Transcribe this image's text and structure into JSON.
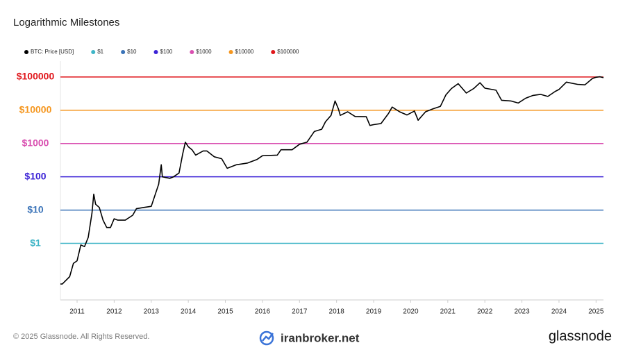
{
  "chart_data": {
    "type": "line",
    "title": "Logarithmic Milestones",
    "log_y": true,
    "xlim": [
      2010.55,
      2025.2
    ],
    "xticks": [
      2011,
      2012,
      2013,
      2014,
      2015,
      2016,
      2017,
      2018,
      2019,
      2020,
      2021,
      2022,
      2023,
      2024,
      2025
    ],
    "ylim": [
      0.02,
      300000
    ],
    "yticks": [
      {
        "value": 100000,
        "label": "$100000"
      },
      {
        "value": 10000,
        "label": "$10000"
      },
      {
        "value": 1000,
        "label": "$1000"
      },
      {
        "value": 100,
        "label": "$100"
      },
      {
        "value": 10,
        "label": "$10"
      },
      {
        "value": 1,
        "label": "$1"
      }
    ],
    "x": [
      2010.55,
      2010.6,
      2010.8,
      2010.9,
      2011.0,
      2011.1,
      2011.2,
      2011.3,
      2011.4,
      2011.45,
      2011.5,
      2011.6,
      2011.7,
      2011.8,
      2011.9,
      2012.0,
      2012.1,
      2012.3,
      2012.5,
      2012.6,
      2012.8,
      2013.0,
      2013.2,
      2013.27,
      2013.3,
      2013.5,
      2013.6,
      2013.75,
      2013.85,
      2013.92,
      2014.0,
      2014.1,
      2014.2,
      2014.4,
      2014.5,
      2014.7,
      2014.9,
      2015.05,
      2015.3,
      2015.6,
      2015.85,
      2016.0,
      2016.4,
      2016.5,
      2016.8,
      2017.0,
      2017.2,
      2017.4,
      2017.6,
      2017.7,
      2017.85,
      2017.96,
      2018.05,
      2018.1,
      2018.3,
      2018.5,
      2018.8,
      2018.9,
      2019.0,
      2019.2,
      2019.4,
      2019.5,
      2019.7,
      2019.9,
      2020.1,
      2020.2,
      2020.4,
      2020.6,
      2020.8,
      2020.95,
      2021.1,
      2021.28,
      2021.5,
      2021.7,
      2021.87,
      2022.0,
      2022.3,
      2022.45,
      2022.7,
      2022.9,
      2023.1,
      2023.3,
      2023.5,
      2023.7,
      2023.9,
      2024.0,
      2024.2,
      2024.5,
      2024.7,
      2024.9,
      2025.0,
      2025.1,
      2025.2
    ],
    "series": [
      {
        "name": "BTC: Price [USD]",
        "color": "#000000",
        "values": [
          0.06,
          0.06,
          0.1,
          0.25,
          0.3,
          0.9,
          0.8,
          1.5,
          8,
          30,
          15,
          12,
          5,
          3,
          3,
          5.5,
          5,
          5,
          7,
          11,
          12,
          13,
          60,
          230,
          100,
          90,
          100,
          130,
          500,
          1100,
          800,
          650,
          450,
          600,
          600,
          400,
          350,
          180,
          230,
          260,
          330,
          430,
          450,
          650,
          650,
          950,
          1100,
          2300,
          2700,
          4500,
          7000,
          19000,
          11000,
          7000,
          9000,
          6500,
          6400,
          3500,
          3700,
          4000,
          8000,
          12500,
          9000,
          7200,
          9500,
          5000,
          9000,
          11000,
          13000,
          29000,
          45000,
          63000,
          33000,
          45000,
          67000,
          46000,
          40000,
          20000,
          19000,
          16500,
          23000,
          28000,
          30000,
          26000,
          37000,
          42000,
          70000,
          60000,
          58000,
          90000,
          98000,
          102000,
          95000
        ]
      }
    ],
    "milestones": [
      {
        "name": "$1",
        "color": "#3fb5c7",
        "value": 1
      },
      {
        "name": "$10",
        "color": "#3a73b8",
        "value": 10
      },
      {
        "name": "$100",
        "color": "#3b22d6",
        "value": 100
      },
      {
        "name": "$1000",
        "color": "#d94fb0",
        "value": 1000
      },
      {
        "name": "$10000",
        "color": "#f5961e",
        "value": 10000
      },
      {
        "name": "$100000",
        "color": "#e0161b",
        "value": 100000
      }
    ]
  },
  "footer": {
    "copyright": "© 2025 Glassnode. All Rights Reserved.",
    "watermark": "iranbroker.net",
    "brand": "glassnode"
  }
}
